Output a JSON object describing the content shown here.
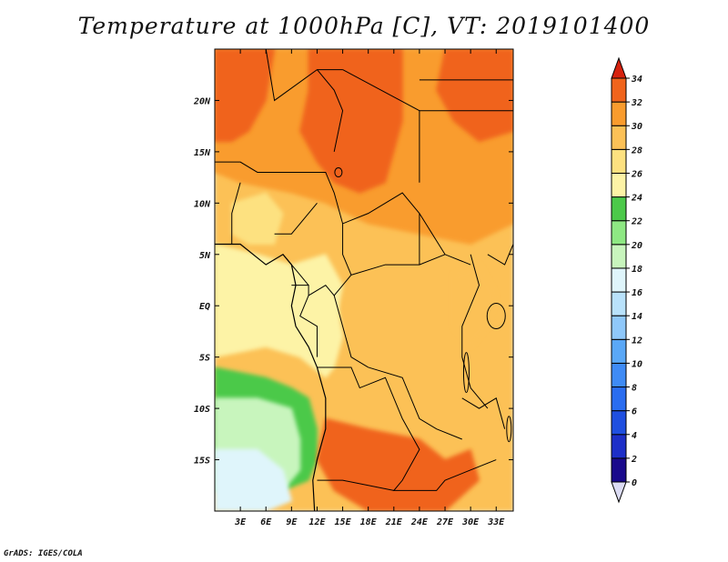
{
  "chart_data": {
    "type": "heatmap",
    "title": "Temperature at 1000hPa [C], VT: 2019101400",
    "x_tick_labels": [
      "3E",
      "6E",
      "9E",
      "12E",
      "15E",
      "18E",
      "21E",
      "24E",
      "27E",
      "30E",
      "33E"
    ],
    "y_tick_labels": [
      "20N",
      "15N",
      "10N",
      "5N",
      "EQ",
      "5S",
      "10S",
      "15S"
    ],
    "x_ticks": [
      3,
      6,
      9,
      12,
      15,
      18,
      21,
      24,
      27,
      30,
      33
    ],
    "y_ticks": [
      20,
      15,
      10,
      5,
      0,
      -5,
      -10,
      -15
    ],
    "xlim": [
      0,
      35
    ],
    "ylim": [
      -20,
      25
    ],
    "colorbar": {
      "labels": [
        "0",
        "2",
        "4",
        "6",
        "8",
        "10",
        "12",
        "14",
        "16",
        "18",
        "20",
        "22",
        "24",
        "26",
        "28",
        "30",
        "32",
        "34"
      ],
      "levels": [
        0,
        2,
        4,
        6,
        8,
        10,
        12,
        14,
        16,
        18,
        20,
        22,
        24,
        26,
        28,
        30,
        32,
        34
      ],
      "colors": [
        "#1a0a8c",
        "#1d2fc8",
        "#1f4fe0",
        "#2a6df0",
        "#3f8bf5",
        "#5aa8f7",
        "#8fc8fa",
        "#b9e2fb",
        "#dff5fb",
        "#c8f5bd",
        "#8ee883",
        "#4cc94a",
        "#fdf3a6",
        "#fde180",
        "#fcc157",
        "#f99c2e",
        "#f0641c",
        "#d6220e"
      ],
      "arrow_low": "#dcdcf4",
      "arrow_high": "#d6220e"
    },
    "field": {
      "sahel_north": 32,
      "chad_sudan_south": 30,
      "congo_basin": 28,
      "central_highlands": 26,
      "gabon_coast": 24,
      "atlantic_south": 22,
      "southern_atlantic": 18,
      "far_southwest": 16,
      "angola_zambia": 32
    }
  },
  "credit": "GrADS: IGES/COLA"
}
